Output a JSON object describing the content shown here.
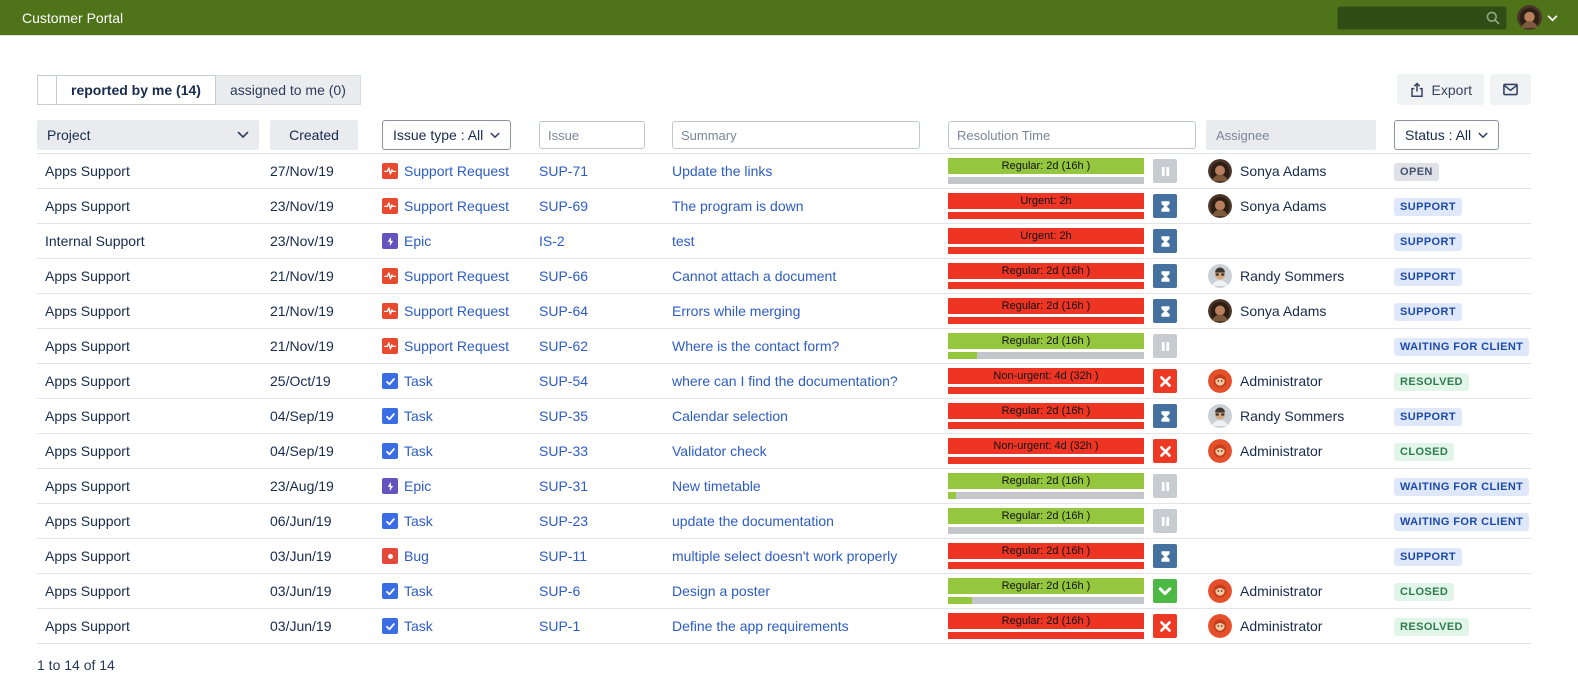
{
  "topbar": {
    "title": "Customer Portal"
  },
  "tabs": [
    {
      "label": "reported by me (14)",
      "active": true
    },
    {
      "label": "assigned to me (0)",
      "active": false
    }
  ],
  "toolbar": {
    "export_label": "Export"
  },
  "filters": {
    "project_label": "Project",
    "created_label": "Created",
    "issue_type_label": "Issue type : All",
    "issue_placeholder": "Issue",
    "summary_placeholder": "Summary",
    "resolution_placeholder": "Resolution Time",
    "assignee_label": "Assignee",
    "status_label": "Status : All"
  },
  "footer": {
    "count_text": "1 to 14 of 14"
  },
  "icons": {
    "topbar": [
      "search-icon",
      "chevron-down-icon"
    ],
    "toolbar": [
      "export-icon",
      "mail-icon"
    ],
    "sla": [
      "sla-paused-icon",
      "sla-running-hourglass-icon",
      "sla-breached-x-icon",
      "sla-met-check-icon"
    ],
    "issue_types": [
      "support-request-icon",
      "epic-icon",
      "task-icon",
      "bug-icon"
    ]
  },
  "colors": {
    "topbar_bg": "#4f7319",
    "search_bg": "#2f4d15",
    "link": "#2c5cc5",
    "sla_green": "#94c73d",
    "sla_red": "#ee3524",
    "sla_track_gray": "#c3c6cb",
    "icon_pause_bg": "#c7ccd1",
    "icon_hourglass_bg": "#44719f",
    "icon_breached_bg": "#ee3a24",
    "icon_met_bg": "#4cb944",
    "type_support": "#e8492f",
    "type_epic": "#6554c0",
    "type_task": "#3a6ce4",
    "type_bug": "#e5493a",
    "status_gray_bg": "#dfe1e6",
    "status_gray_fg": "#44546f",
    "status_blue_bg": "#dfe8fb",
    "status_blue_fg": "#1c4aa8",
    "status_green_bg": "#e2f5e9",
    "status_green_fg": "#2e7d4f"
  },
  "rows": [
    {
      "project": "Apps Support",
      "created": "27/Nov/19",
      "type": "Support Request",
      "type_kind": "support",
      "issue": "SUP-71",
      "summary": "Update the links",
      "sla": {
        "label": "Regular: 2d (16h )",
        "bar": "green",
        "track": "gray",
        "fill_pct": 0,
        "icon": "pause"
      },
      "assignee": "Sonya Adams",
      "avatar": "sonya",
      "status": "OPEN",
      "status_kind": "gray"
    },
    {
      "project": "Apps Support",
      "created": "23/Nov/19",
      "type": "Support Request",
      "type_kind": "support",
      "issue": "SUP-69",
      "summary": "The program is down",
      "sla": {
        "label": "Urgent: 2h",
        "bar": "red",
        "track": "red",
        "fill_pct": 0,
        "icon": "hourglass"
      },
      "assignee": "Sonya Adams",
      "avatar": "sonya",
      "status": "SUPPORT",
      "status_kind": "blue"
    },
    {
      "project": "Internal Support",
      "created": "23/Nov/19",
      "type": "Epic",
      "type_kind": "epic",
      "issue": "IS-2",
      "summary": "test",
      "sla": {
        "label": "Urgent: 2h",
        "bar": "red",
        "track": "red",
        "fill_pct": 0,
        "icon": "hourglass"
      },
      "assignee": "",
      "avatar": "",
      "status": "SUPPORT",
      "status_kind": "blue"
    },
    {
      "project": "Apps Support",
      "created": "21/Nov/19",
      "type": "Support Request",
      "type_kind": "support",
      "issue": "SUP-66",
      "summary": "Cannot attach a document",
      "sla": {
        "label": "Regular: 2d (16h )",
        "bar": "red",
        "track": "red",
        "fill_pct": 0,
        "icon": "hourglass"
      },
      "assignee": "Randy Sommers",
      "avatar": "randy",
      "status": "SUPPORT",
      "status_kind": "blue"
    },
    {
      "project": "Apps Support",
      "created": "21/Nov/19",
      "type": "Support Request",
      "type_kind": "support",
      "issue": "SUP-64",
      "summary": "Errors while merging",
      "sla": {
        "label": "Regular: 2d (16h )",
        "bar": "red",
        "track": "red",
        "fill_pct": 0,
        "icon": "hourglass"
      },
      "assignee": "Sonya Adams",
      "avatar": "sonya",
      "status": "SUPPORT",
      "status_kind": "blue"
    },
    {
      "project": "Apps Support",
      "created": "21/Nov/19",
      "type": "Support Request",
      "type_kind": "support",
      "issue": "SUP-62",
      "summary": "Where is the contact form?",
      "sla": {
        "label": "Regular: 2d (16h )",
        "bar": "green",
        "track": "gray",
        "fill_pct": 15,
        "icon": "pause"
      },
      "assignee": "",
      "avatar": "",
      "status": "WAITING FOR CLIENT",
      "status_kind": "blue"
    },
    {
      "project": "Apps Support",
      "created": "25/Oct/19",
      "type": "Task",
      "type_kind": "task",
      "issue": "SUP-54",
      "summary": "where can I find the documentation?",
      "sla": {
        "label": "Non-urgent: 4d (32h )",
        "bar": "red",
        "track": "red",
        "fill_pct": 0,
        "icon": "x"
      },
      "assignee": "Administrator",
      "avatar": "admin",
      "status": "RESOLVED",
      "status_kind": "green"
    },
    {
      "project": "Apps Support",
      "created": "04/Sep/19",
      "type": "Task",
      "type_kind": "task",
      "issue": "SUP-35",
      "summary": "Calendar selection",
      "sla": {
        "label": "Regular: 2d (16h )",
        "bar": "red",
        "track": "red",
        "fill_pct": 0,
        "icon": "hourglass"
      },
      "assignee": "Randy Sommers",
      "avatar": "randy",
      "status": "SUPPORT",
      "status_kind": "blue"
    },
    {
      "project": "Apps Support",
      "created": "04/Sep/19",
      "type": "Task",
      "type_kind": "task",
      "issue": "SUP-33",
      "summary": "Validator check",
      "sla": {
        "label": "Non-urgent: 4d (32h )",
        "bar": "red",
        "track": "red",
        "fill_pct": 0,
        "icon": "x"
      },
      "assignee": "Administrator",
      "avatar": "admin",
      "status": "CLOSED",
      "status_kind": "green"
    },
    {
      "project": "Apps Support",
      "created": "23/Aug/19",
      "type": "Epic",
      "type_kind": "epic",
      "issue": "SUP-31",
      "summary": "New timetable",
      "sla": {
        "label": "Regular: 2d (16h )",
        "bar": "green",
        "track": "gray",
        "fill_pct": 4,
        "icon": "pause"
      },
      "assignee": "",
      "avatar": "",
      "status": "WAITING FOR CLIENT",
      "status_kind": "blue"
    },
    {
      "project": "Apps Support",
      "created": "06/Jun/19",
      "type": "Task",
      "type_kind": "task",
      "issue": "SUP-23",
      "summary": "update the documentation",
      "sla": {
        "label": "Regular: 2d (16h )",
        "bar": "green",
        "track": "gray",
        "fill_pct": 0,
        "icon": "pause"
      },
      "assignee": "",
      "avatar": "",
      "status": "WAITING FOR CLIENT",
      "status_kind": "blue"
    },
    {
      "project": "Apps Support",
      "created": "03/Jun/19",
      "type": "Bug",
      "type_kind": "bug",
      "issue": "SUP-11",
      "summary": "multiple select doesn't work properly",
      "sla": {
        "label": "Regular: 2d (16h )",
        "bar": "red",
        "track": "red",
        "fill_pct": 0,
        "icon": "hourglass"
      },
      "assignee": "",
      "avatar": "",
      "status": "SUPPORT",
      "status_kind": "blue"
    },
    {
      "project": "Apps Support",
      "created": "03/Jun/19",
      "type": "Task",
      "type_kind": "task",
      "issue": "SUP-6",
      "summary": "Design a poster",
      "sla": {
        "label": "Regular: 2d (16h )",
        "bar": "green",
        "track": "gray",
        "fill_pct": 12,
        "icon": "check"
      },
      "assignee": "Administrator",
      "avatar": "admin",
      "status": "CLOSED",
      "status_kind": "green"
    },
    {
      "project": "Apps Support",
      "created": "03/Jun/19",
      "type": "Task",
      "type_kind": "task",
      "issue": "SUP-1",
      "summary": "Define the app requirements",
      "sla": {
        "label": "Regular: 2d (16h )",
        "bar": "red",
        "track": "red",
        "fill_pct": 0,
        "icon": "x"
      },
      "assignee": "Administrator",
      "avatar": "admin",
      "status": "RESOLVED",
      "status_kind": "green"
    }
  ]
}
